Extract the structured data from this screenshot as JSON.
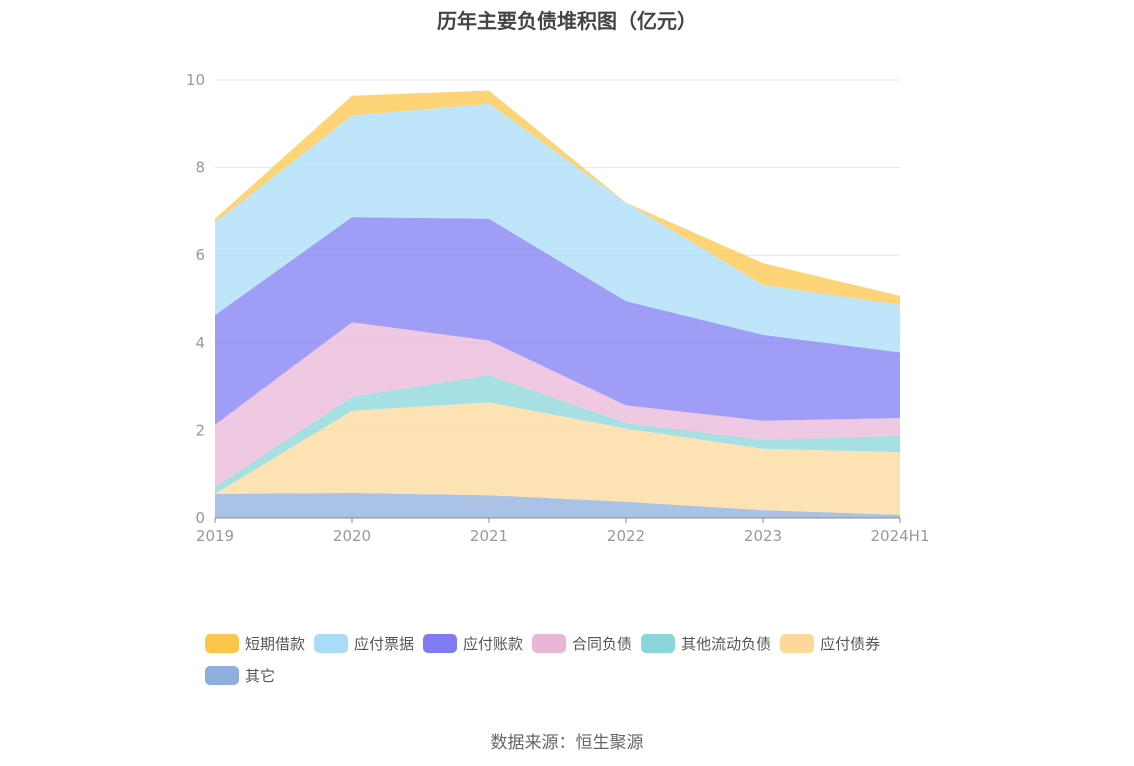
{
  "chart_data": {
    "type": "area",
    "stacked": true,
    "title": "历年主要负债堆积图（亿元）",
    "categories": [
      "2019",
      "2020",
      "2021",
      "2022",
      "2023",
      "2024H1"
    ],
    "ylim": [
      0,
      10
    ],
    "yticks": [
      0,
      2,
      4,
      6,
      8,
      10
    ],
    "grid": true,
    "legend_position": "bottom",
    "series": [
      {
        "name": "其它",
        "color": "#8eaedc",
        "values": [
          0.55,
          0.57,
          0.52,
          0.37,
          0.18,
          0.07
        ]
      },
      {
        "name": "应付债券",
        "color": "#fcd99a",
        "values": [
          0.0,
          1.88,
          2.12,
          1.67,
          1.4,
          1.43
        ]
      },
      {
        "name": "其他流动负债",
        "color": "#8ad6da",
        "values": [
          0.16,
          0.32,
          0.62,
          0.13,
          0.2,
          0.38
        ]
      },
      {
        "name": "合同负债",
        "color": "#eab6d8",
        "values": [
          1.42,
          1.7,
          0.79,
          0.4,
          0.44,
          0.4
        ]
      },
      {
        "name": "应付账款",
        "color": "#7f7cf3",
        "values": [
          2.5,
          2.4,
          2.78,
          2.38,
          1.96,
          1.5
        ]
      },
      {
        "name": "应付票据",
        "color": "#a8dcf7",
        "values": [
          2.12,
          2.32,
          2.63,
          2.25,
          1.14,
          1.09
        ]
      },
      {
        "name": "短期借款",
        "color": "#fcc64a",
        "values": [
          0.08,
          0.45,
          0.3,
          0.0,
          0.5,
          0.2
        ]
      }
    ],
    "legend_order": [
      "短期借款",
      "应付票据",
      "应付账款",
      "合同负债",
      "其他流动负债",
      "应付债券",
      "其它"
    ],
    "source": "数据来源：恒生聚源"
  }
}
